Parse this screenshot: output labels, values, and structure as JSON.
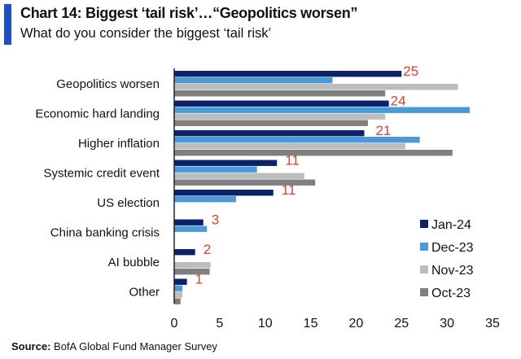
{
  "title": "Chart 14: Biggest ‘tail risk’…“Geopolitics worsen”",
  "subtitle": "What do you consider the biggest ‘tail risk’",
  "source_label": "Source:",
  "source_text": "BofA Global Fund Manager Survey",
  "chart_data": {
    "type": "bar",
    "orientation": "horizontal",
    "title": "Chart 14: Biggest ‘tail risk’…“Geopolitics worsen”",
    "subtitle": "What do you consider the biggest ‘tail risk’",
    "categories": [
      "Geopolitics worsen",
      "Economic hard landing",
      "Higher inflation",
      "Systemic credit event",
      "US election",
      "China banking crisis",
      "AI bubble",
      "Other"
    ],
    "series": [
      {
        "name": "Jan-24",
        "color": "#0c2268",
        "values": [
          25,
          23.6,
          20.9,
          11.3,
          10.9,
          3.2,
          2.3,
          1.4
        ]
      },
      {
        "name": "Dec-23",
        "color": "#4a9ad8",
        "values": [
          17.4,
          32.5,
          27.0,
          9.1,
          6.8,
          3.6,
          0,
          0.9
        ]
      },
      {
        "name": "Nov-23",
        "color": "#bdbdbd",
        "values": [
          31.2,
          23.2,
          25.4,
          14.3,
          0,
          0,
          4.0,
          0.9
        ]
      },
      {
        "name": "Oct-23",
        "color": "#7f7f7f",
        "values": [
          23.2,
          21.3,
          30.6,
          15.5,
          0,
          0,
          3.9,
          0.7
        ]
      }
    ],
    "data_labels": [
      "25",
      "24",
      "21",
      "11",
      "11",
      "3",
      "2",
      "1"
    ],
    "xlim": [
      0,
      35
    ],
    "xticks": [
      "0",
      "5",
      "10",
      "15",
      "20",
      "25",
      "30",
      "35"
    ],
    "legend_position": "bottom-right",
    "grid": false,
    "xlabel": "",
    "ylabel": ""
  }
}
